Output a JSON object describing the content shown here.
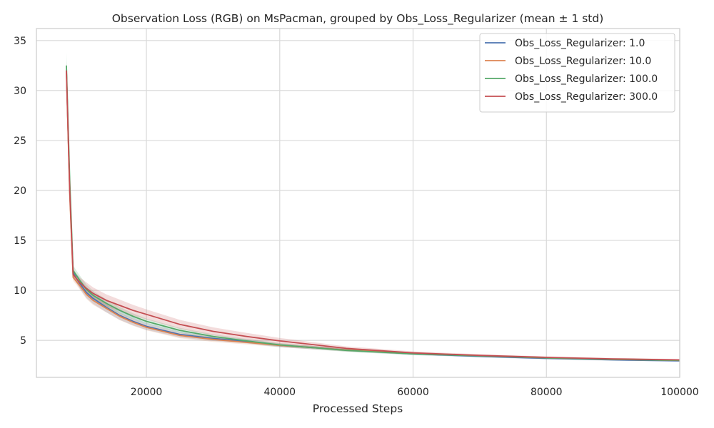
{
  "chart_data": {
    "type": "line",
    "title": "Observation Loss (RGB) on MsPacman, grouped by Obs_Loss_Regularizer (mean ± 1 std)",
    "xlabel": "Processed Steps",
    "ylabel": "",
    "xlim": [
      3500,
      100000
    ],
    "ylim": [
      1.3,
      36.2
    ],
    "xticks": [
      20000,
      40000,
      60000,
      80000,
      100000
    ],
    "yticks": [
      5,
      10,
      15,
      20,
      25,
      30,
      35
    ],
    "grid": true,
    "legend_position": "top-right",
    "series": [
      {
        "name": "Obs_Loss_Regularizer: 1.0",
        "color": "#4c72b0",
        "x": [
          8000,
          8500,
          9000,
          9500,
          10000,
          11000,
          12000,
          14000,
          16000,
          18000,
          20000,
          25000,
          30000,
          35000,
          40000,
          50000,
          60000,
          70000,
          80000,
          90000,
          100000
        ],
        "y": [
          32.0,
          20.0,
          11.8,
          11.2,
          10.7,
          9.8,
          9.2,
          8.3,
          7.5,
          6.9,
          6.4,
          5.6,
          5.2,
          4.9,
          4.5,
          4.05,
          3.65,
          3.4,
          3.2,
          3.05,
          2.95
        ],
        "std": [
          1.0,
          1.0,
          0.4,
          0.45,
          0.5,
          0.55,
          0.55,
          0.5,
          0.45,
          0.4,
          0.35,
          0.3,
          0.25,
          0.2,
          0.18,
          0.15,
          0.12,
          0.1,
          0.1,
          0.08,
          0.08
        ]
      },
      {
        "name": "Obs_Loss_Regularizer: 10.0",
        "color": "#dd8452",
        "x": [
          8000,
          8500,
          9000,
          9500,
          10000,
          11000,
          12000,
          14000,
          16000,
          18000,
          20000,
          25000,
          30000,
          35000,
          40000,
          50000,
          60000,
          70000,
          80000,
          90000,
          100000
        ],
        "y": [
          31.8,
          19.5,
          11.3,
          10.9,
          10.5,
          9.6,
          9.0,
          8.2,
          7.4,
          6.8,
          6.3,
          5.5,
          5.1,
          4.8,
          4.5,
          4.05,
          3.7,
          3.45,
          3.25,
          3.1,
          3.0
        ],
        "std": [
          0.8,
          0.8,
          0.35,
          0.35,
          0.4,
          0.45,
          0.45,
          0.4,
          0.38,
          0.35,
          0.3,
          0.28,
          0.25,
          0.2,
          0.18,
          0.15,
          0.12,
          0.1,
          0.1,
          0.08,
          0.08
        ]
      },
      {
        "name": "Obs_Loss_Regularizer: 100.0",
        "color": "#55a868",
        "x": [
          8000,
          8500,
          9000,
          9500,
          10000,
          11000,
          12000,
          14000,
          16000,
          18000,
          20000,
          25000,
          30000,
          35000,
          40000,
          50000,
          60000,
          70000,
          80000,
          90000,
          100000
        ],
        "y": [
          32.5,
          21.0,
          12.0,
          11.5,
          11.0,
          10.1,
          9.5,
          8.7,
          8.0,
          7.4,
          6.9,
          6.0,
          5.4,
          4.95,
          4.55,
          4.0,
          3.65,
          3.45,
          3.25,
          3.1,
          3.0
        ],
        "std": [
          1.3,
          1.0,
          0.5,
          0.5,
          0.5,
          0.5,
          0.45,
          0.4,
          0.35,
          0.3,
          0.28,
          0.25,
          0.22,
          0.2,
          0.18,
          0.15,
          0.12,
          0.1,
          0.1,
          0.08,
          0.08
        ]
      },
      {
        "name": "Obs_Loss_Regularizer: 300.0",
        "color": "#c44e52",
        "x": [
          8000,
          8500,
          9000,
          9500,
          10000,
          11000,
          12000,
          14000,
          16000,
          18000,
          20000,
          25000,
          30000,
          35000,
          40000,
          50000,
          60000,
          70000,
          80000,
          90000,
          100000
        ],
        "y": [
          32.0,
          20.0,
          11.6,
          11.2,
          10.8,
          10.2,
          9.7,
          9.0,
          8.5,
          8.0,
          7.6,
          6.6,
          5.9,
          5.4,
          4.95,
          4.2,
          3.75,
          3.5,
          3.3,
          3.15,
          3.05
        ],
        "std": [
          0.9,
          0.8,
          0.4,
          0.45,
          0.5,
          0.6,
          0.6,
          0.6,
          0.58,
          0.55,
          0.5,
          0.45,
          0.4,
          0.35,
          0.3,
          0.2,
          0.15,
          0.12,
          0.1,
          0.1,
          0.08
        ]
      }
    ]
  }
}
